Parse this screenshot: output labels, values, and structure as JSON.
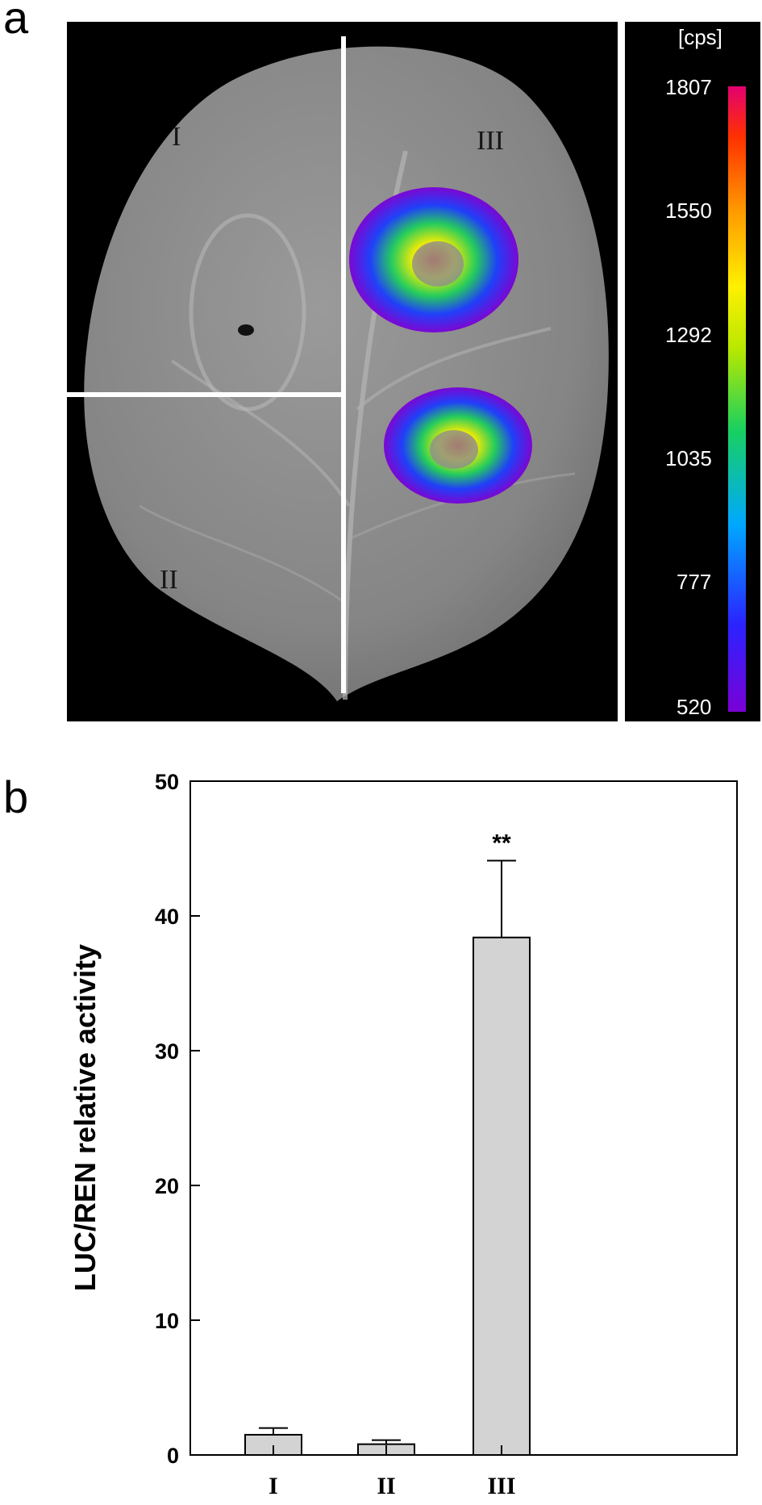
{
  "panel_a": {
    "letter": "a",
    "region_labels": [
      "I",
      "II",
      "III"
    ],
    "colorbar": {
      "unit": "[cps]",
      "ticks": [
        "1807",
        "1550",
        "1292",
        "1035",
        "777",
        "520"
      ],
      "min": 520,
      "max": 1807,
      "colormap": [
        "#7a00d6",
        "#2a23ff",
        "#00a8ff",
        "#18d060",
        "#b8e800",
        "#fff000",
        "#ff9a00",
        "#ff3000",
        "#e20070"
      ]
    }
  },
  "panel_b": {
    "letter": "b"
  },
  "chart_data": {
    "type": "bar",
    "categories": [
      "I",
      "II",
      "III"
    ],
    "values": [
      1.5,
      0.8,
      38.4
    ],
    "errors": [
      0.5,
      0.3,
      5.7
    ],
    "annotations": [
      "",
      "",
      "**"
    ],
    "ylabel": "LUC/REN relative activity",
    "xlabel": "",
    "ylim": [
      0,
      50
    ],
    "yticks": [
      0,
      10,
      20,
      30,
      40,
      50
    ],
    "bar_color": "#d3d3d3",
    "grid": false
  }
}
